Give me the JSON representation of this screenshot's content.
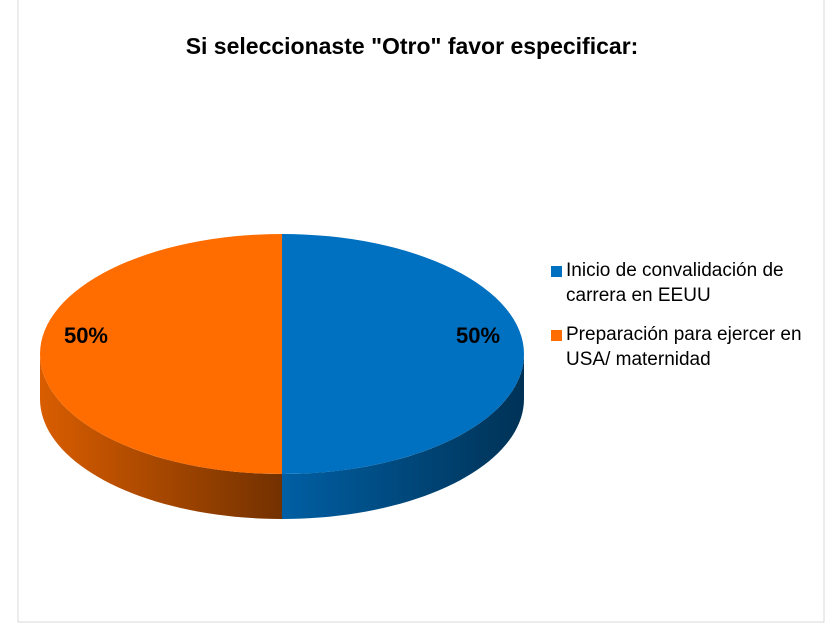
{
  "chart_data": {
    "type": "pie",
    "title": "Si seleccionaste \"Otro\" favor especificar:",
    "categories": [
      "Inicio de convalidación de carrera en EEUU",
      "Preparación para ejercer en USA/ maternidad"
    ],
    "values": [
      50,
      50
    ],
    "value_labels": [
      "50%",
      "50%"
    ],
    "colors": [
      "#0070c0",
      "#ff6d00"
    ],
    "legend": "right"
  }
}
